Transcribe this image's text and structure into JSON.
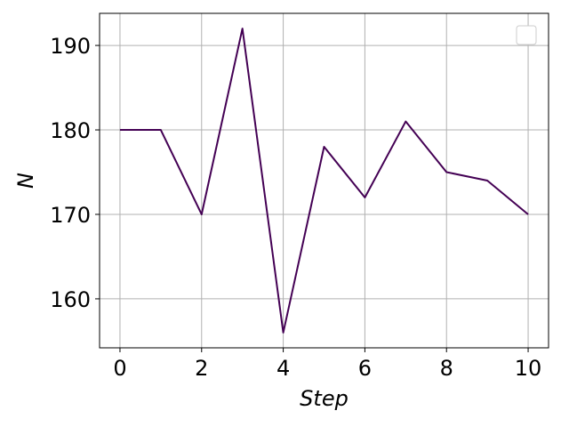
{
  "chart_data": {
    "type": "line",
    "xlabel": "Step",
    "ylabel": "N",
    "x": [
      0,
      1,
      2,
      3,
      4,
      5,
      6,
      7,
      8,
      9,
      10
    ],
    "series": [
      {
        "values": [
          180,
          180,
          170,
          192,
          156,
          178,
          172,
          181,
          175,
          174,
          170
        ]
      }
    ],
    "xlim": [
      -0.5,
      10.5
    ],
    "ylim": [
      154.2,
      193.8
    ],
    "xticks": [
      0,
      2,
      4,
      6,
      8,
      10
    ],
    "yticks": [
      160,
      170,
      180,
      190
    ],
    "grid": true,
    "legend": "upper right (empty)",
    "colors": {
      "line": "#440154",
      "grid": "#b0b0b0",
      "frame": "#000000"
    }
  }
}
